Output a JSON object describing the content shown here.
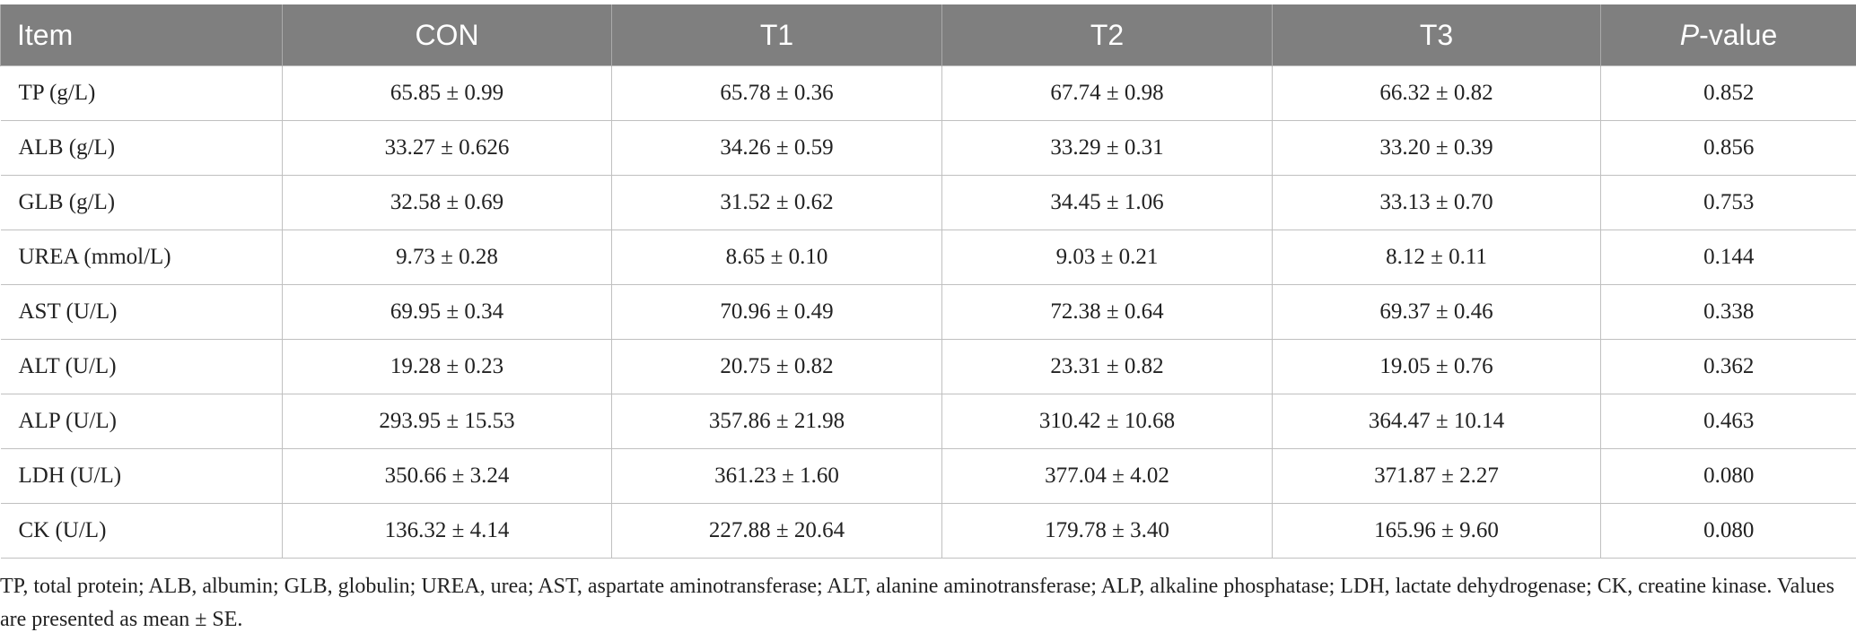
{
  "table": {
    "header": [
      "Item",
      "CON",
      "T1",
      "T2",
      "T3",
      "P-value"
    ],
    "rows": [
      [
        "TP (g/L)",
        "65.85 ± 0.99",
        "65.78 ± 0.36",
        "67.74 ± 0.98",
        "66.32 ± 0.82",
        "0.852"
      ],
      [
        "ALB (g/L)",
        "33.27 ± 0.626",
        "34.26 ± 0.59",
        "33.29 ± 0.31",
        "33.20 ± 0.39",
        "0.856"
      ],
      [
        "GLB (g/L)",
        "32.58 ± 0.69",
        "31.52 ± 0.62",
        "34.45 ± 1.06",
        "33.13 ± 0.70",
        "0.753"
      ],
      [
        "UREA (mmol/L)",
        "9.73 ± 0.28",
        "8.65 ± 0.10",
        "9.03 ± 0.21",
        "8.12 ± 0.11",
        "0.144"
      ],
      [
        "AST (U/L)",
        "69.95 ± 0.34",
        "70.96 ± 0.49",
        "72.38 ± 0.64",
        "69.37 ± 0.46",
        "0.338"
      ],
      [
        "ALT (U/L)",
        "19.28 ± 0.23",
        "20.75 ± 0.82",
        "23.31 ± 0.82",
        "19.05 ± 0.76",
        "0.362"
      ],
      [
        "ALP (U/L)",
        "293.95 ± 15.53",
        "357.86 ± 21.98",
        "310.42 ± 10.68",
        "364.47 ± 10.14",
        "0.463"
      ],
      [
        "LDH (U/L)",
        "350.66 ± 3.24",
        "361.23 ± 1.60",
        "377.04 ± 4.02",
        "371.87 ± 2.27",
        "0.080"
      ],
      [
        "CK (U/L)",
        "136.32 ± 4.14",
        "227.88 ± 20.64",
        "179.78 ± 3.40",
        "165.96 ± 9.60",
        "0.080"
      ]
    ]
  },
  "footnote": "TP, total protein; ALB, albumin; GLB, globulin; UREA, urea; AST, aspartate aminotransferase; ALT, alanine aminotransferase; ALP, alkaline phosphatase; LDH, lactate dehydrogenase; CK, creatine kinase. Values are presented as mean ± SE."
}
